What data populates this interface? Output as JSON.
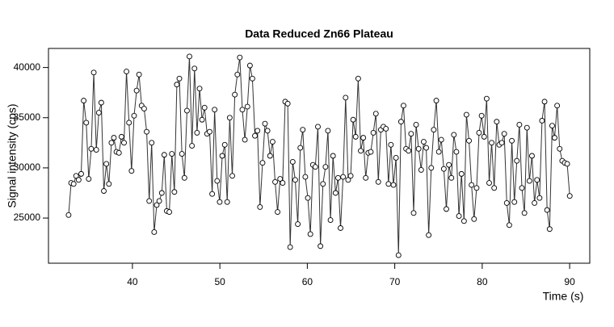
{
  "chart_data": {
    "type": "line",
    "title": "Data Reduced Zn66 Plateau",
    "x_label": "Time (s)",
    "y_label": "Signal intensity (cps)",
    "x": [
      32.7,
      32.99,
      33.28,
      33.56,
      33.85,
      34.14,
      34.43,
      34.72,
      35.0,
      35.29,
      35.58,
      35.87,
      36.16,
      36.44,
      36.73,
      37.02,
      37.31,
      37.6,
      37.88,
      38.17,
      38.46,
      38.75,
      39.04,
      39.32,
      39.61,
      39.9,
      40.19,
      40.48,
      40.76,
      41.05,
      41.34,
      41.63,
      41.92,
      42.2,
      42.49,
      42.78,
      43.07,
      43.36,
      43.64,
      43.93,
      44.22,
      44.51,
      44.8,
      45.08,
      45.37,
      45.66,
      45.95,
      46.24,
      46.52,
      46.81,
      47.1,
      47.39,
      47.68,
      47.96,
      48.25,
      48.54,
      48.83,
      49.12,
      49.4,
      49.69,
      49.98,
      50.27,
      50.56,
      50.84,
      51.13,
      51.42,
      51.71,
      52.0,
      52.28,
      52.57,
      52.86,
      53.15,
      53.44,
      53.72,
      54.01,
      54.3,
      54.59,
      54.88,
      55.16,
      55.45,
      55.74,
      56.03,
      56.32,
      56.6,
      56.89,
      57.18,
      57.47,
      57.76,
      58.04,
      58.33,
      58.62,
      58.91,
      59.2,
      59.48,
      59.77,
      60.06,
      60.35,
      60.64,
      60.92,
      61.21,
      61.5,
      61.79,
      62.08,
      62.36,
      62.65,
      62.94,
      63.23,
      63.52,
      63.8,
      64.09,
      64.38,
      64.67,
      64.96,
      65.24,
      65.53,
      65.82,
      66.11,
      66.4,
      66.68,
      66.97,
      67.26,
      67.55,
      67.84,
      68.12,
      68.41,
      68.7,
      68.99,
      69.28,
      69.56,
      69.85,
      70.14,
      70.43,
      70.72,
      71.0,
      71.29,
      71.58,
      71.87,
      72.16,
      72.44,
      72.73,
      73.02,
      73.31,
      73.6,
      73.88,
      74.17,
      74.46,
      74.75,
      75.04,
      75.32,
      75.61,
      75.9,
      76.19,
      76.48,
      76.76,
      77.05,
      77.34,
      77.63,
      77.92,
      78.2,
      78.49,
      78.78,
      79.07,
      79.36,
      79.64,
      79.93,
      80.22,
      80.51,
      80.8,
      81.08,
      81.37,
      81.66,
      81.95,
      82.24,
      82.52,
      82.81,
      83.1,
      83.39,
      83.68,
      83.96,
      84.25,
      84.54,
      84.83,
      85.12,
      85.4,
      85.69,
      85.98,
      86.27,
      86.56,
      86.84,
      87.13,
      87.42,
      87.71,
      88.0,
      88.28,
      88.57,
      88.86,
      89.15,
      89.44,
      89.72,
      90.01
    ],
    "series": [
      {
        "color": "#333333",
        "values": [
          25300,
          28500,
          28400,
          29200,
          28800,
          29400,
          36700,
          34500,
          28900,
          31900,
          39500,
          31800,
          35500,
          36500,
          27700,
          30400,
          28400,
          32500,
          33000,
          31600,
          31500,
          33100,
          32500,
          39600,
          34500,
          29700,
          35200,
          37700,
          39300,
          36200,
          35900,
          33600,
          26700,
          32500,
          23600,
          26300,
          26700,
          27500,
          31300,
          25700,
          25600,
          31400,
          27600,
          38300,
          38900,
          31400,
          29000,
          35700,
          41100,
          32200,
          39900,
          33500,
          37900,
          34800,
          36000,
          33400,
          33600,
          27400,
          35800,
          28700,
          26600,
          31200,
          32300,
          26600,
          35000,
          29200,
          37300,
          39300,
          41000,
          35800,
          32800,
          36100,
          40200,
          38900,
          33200,
          33700,
          26100,
          30500,
          34400,
          33700,
          31200,
          32600,
          28600,
          25600,
          28900,
          28500,
          36600,
          36400,
          22100,
          30600,
          28800,
          24400,
          32000,
          33800,
          29100,
          27000,
          23400,
          30300,
          30100,
          34100,
          22200,
          28400,
          30100,
          33700,
          24800,
          31200,
          27500,
          29000,
          24000,
          29100,
          37000,
          28800,
          29200,
          34800,
          33100,
          38900,
          31700,
          33000,
          29000,
          31500,
          31600,
          33500,
          35400,
          28600,
          33800,
          34100,
          33900,
          28400,
          32300,
          28300,
          31000,
          21300,
          34600,
          36200,
          31900,
          31700,
          33400,
          25500,
          34300,
          31900,
          29800,
          32600,
          32000,
          23300,
          30000,
          33800,
          36700,
          31600,
          32800,
          29900,
          25900,
          30300,
          29000,
          33300,
          31600,
          25200,
          29400,
          24700,
          35300,
          32700,
          28300,
          24900,
          28000,
          33500,
          35200,
          33100,
          36900,
          28500,
          32500,
          28000,
          34600,
          32300,
          32500,
          33400,
          26500,
          24300,
          32700,
          26600,
          30700,
          34300,
          28000,
          25500,
          34000,
          28700,
          31200,
          26500,
          28800,
          27000,
          34700,
          36600,
          25800,
          23900,
          34200,
          33000,
          36200,
          31900,
          30700,
          30500,
          30400,
          27200
        ]
      }
    ],
    "xlim": [
      30.4,
      92.3
    ],
    "ylim": [
      20500,
      41900
    ],
    "xticks": [
      40,
      50,
      60,
      70,
      80,
      90
    ],
    "yticks": [
      25000,
      30000,
      35000,
      40000
    ]
  }
}
